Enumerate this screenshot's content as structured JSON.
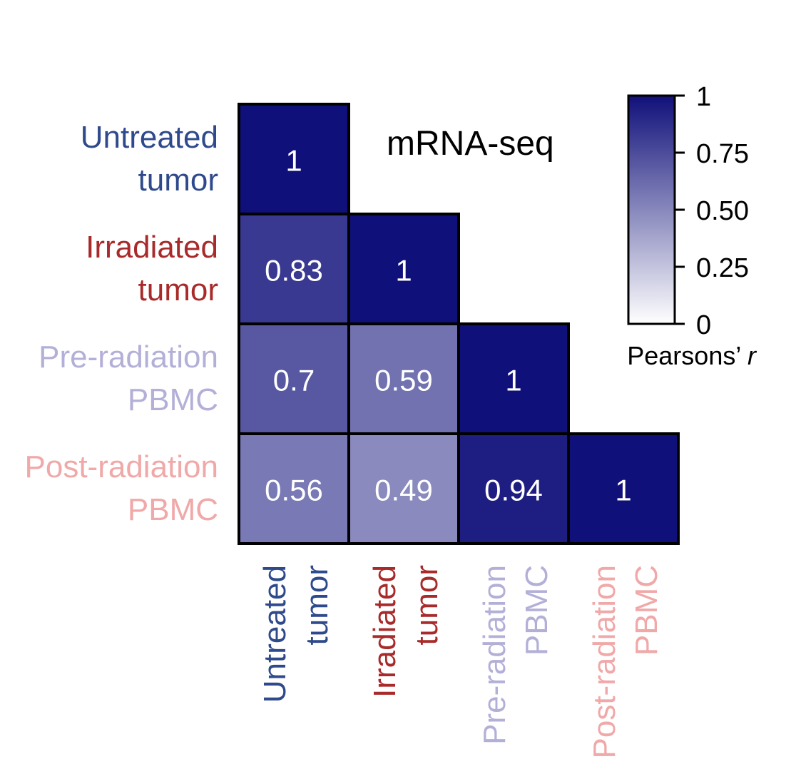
{
  "chart_data": {
    "type": "heatmap",
    "title": "mRNA-seq",
    "layout": "lower-triangle",
    "labels": [
      {
        "line1": "Untreated",
        "line2": "tumor",
        "color": "#2f4a8c"
      },
      {
        "line1": "Irradiated",
        "line2": "tumor",
        "color": "#a82a2a"
      },
      {
        "line1": "Pre-radiation",
        "line2": "PBMC",
        "color": "#b3b0d8"
      },
      {
        "line1": "Post-radiation",
        "line2": "PBMC",
        "color": "#f0a8a8"
      }
    ],
    "matrix": [
      [
        1,
        null,
        null,
        null
      ],
      [
        0.83,
        1,
        null,
        null
      ],
      [
        0.7,
        0.59,
        1,
        null
      ],
      [
        0.56,
        0.49,
        0.94,
        1
      ]
    ],
    "cell_labels": [
      [
        "1",
        "",
        "",
        ""
      ],
      [
        "0.83",
        "1",
        "",
        ""
      ],
      [
        "0.7",
        "0.59",
        "1",
        ""
      ],
      [
        "0.56",
        "0.49",
        "0.94",
        "1"
      ]
    ],
    "colorbar": {
      "range": [
        0,
        1
      ],
      "low_color": "#ffffff",
      "high_color": "#10107a",
      "ticks": [
        0,
        0.25,
        0.5,
        0.75,
        1
      ],
      "tick_labels": [
        "0",
        "0.25",
        "0.50",
        "0.75",
        "1"
      ],
      "label_prefix": "Pearsons’ ",
      "label_italic": "r"
    }
  }
}
